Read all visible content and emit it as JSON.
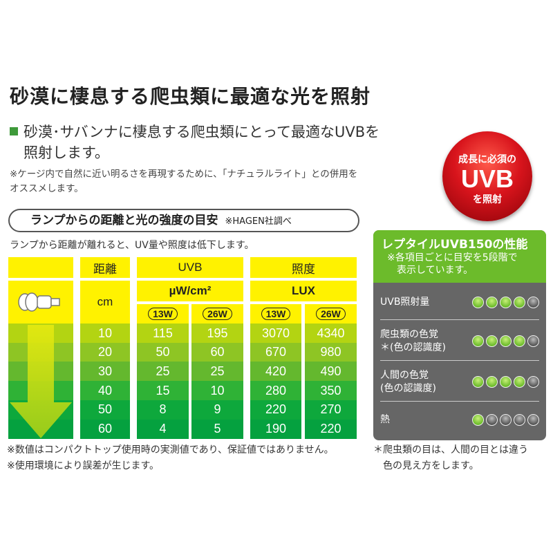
{
  "title": "砂漠に棲息する爬虫類に最適な光を照射",
  "lead": [
    "砂漠･サバンナに棲息する爬虫類にとって最適なUVBを",
    "照射します。"
  ],
  "note": [
    "※ケージ内で自然に近い明るさを再現するために、「ナチュラルライト」との併用を",
    "オススメします。"
  ],
  "badge": {
    "line1": "成長に必須の",
    "line2": "UVB",
    "line3": "を照射"
  },
  "section": {
    "title": "ランプからの距離と光の強度の目安",
    "source": "※HAGEN社調べ",
    "subtitle": "ランプから距離が離れると、UV量や照度は低下します。"
  },
  "table": {
    "headers": {
      "distance": "距離",
      "distance_unit": "cm",
      "uvb": "UVB",
      "uvb_unit": "µW/cm²",
      "lux": "照度",
      "lux_unit": "LUX",
      "w13": "13W",
      "w26": "26W"
    },
    "rows": [
      {
        "cm": "10",
        "uvb13": "115",
        "uvb26": "195",
        "lux13": "3070",
        "lux26": "4340"
      },
      {
        "cm": "20",
        "uvb13": "50",
        "uvb26": "60",
        "lux13": "670",
        "lux26": "980"
      },
      {
        "cm": "30",
        "uvb13": "25",
        "uvb26": "25",
        "lux13": "420",
        "lux26": "490"
      },
      {
        "cm": "40",
        "uvb13": "15",
        "uvb26": "10",
        "lux13": "280",
        "lux26": "350"
      },
      {
        "cm": "50",
        "uvb13": "8",
        "uvb26": "9",
        "lux13": "220",
        "lux26": "270"
      },
      {
        "cm": "60",
        "uvb13": "4",
        "uvb26": "5",
        "lux13": "190",
        "lux26": "220"
      }
    ],
    "row_colors": [
      "#b3d412",
      "#8ec524",
      "#64b82e",
      "#2fb236",
      "#0ea83c",
      "#05a13f"
    ]
  },
  "panel": {
    "title": "レプタイルUVB150の性能",
    "subtitle": [
      "※各項目ごとに目安を5段階で",
      "表示しています。"
    ],
    "items": [
      {
        "label": [
          "UVB照射量"
        ],
        "rating": 4
      },
      {
        "label": [
          "爬虫類の色覚",
          "＊(色の認識度)"
        ],
        "rating": 4
      },
      {
        "label": [
          "人間の色覚",
          "(色の認識度)"
        ],
        "rating": 4
      },
      {
        "label": [
          "熱"
        ],
        "rating": 1
      }
    ],
    "max": 5
  },
  "footnotes_left": [
    "※数値はコンパクトトップ使用時の実測値であり、保証値ではありません。",
    "※使用環境により誤差が生じます。"
  ],
  "footnote_right": [
    "＊爬虫類の目は、人間の目とは違う",
    "色の見え方をします。"
  ]
}
